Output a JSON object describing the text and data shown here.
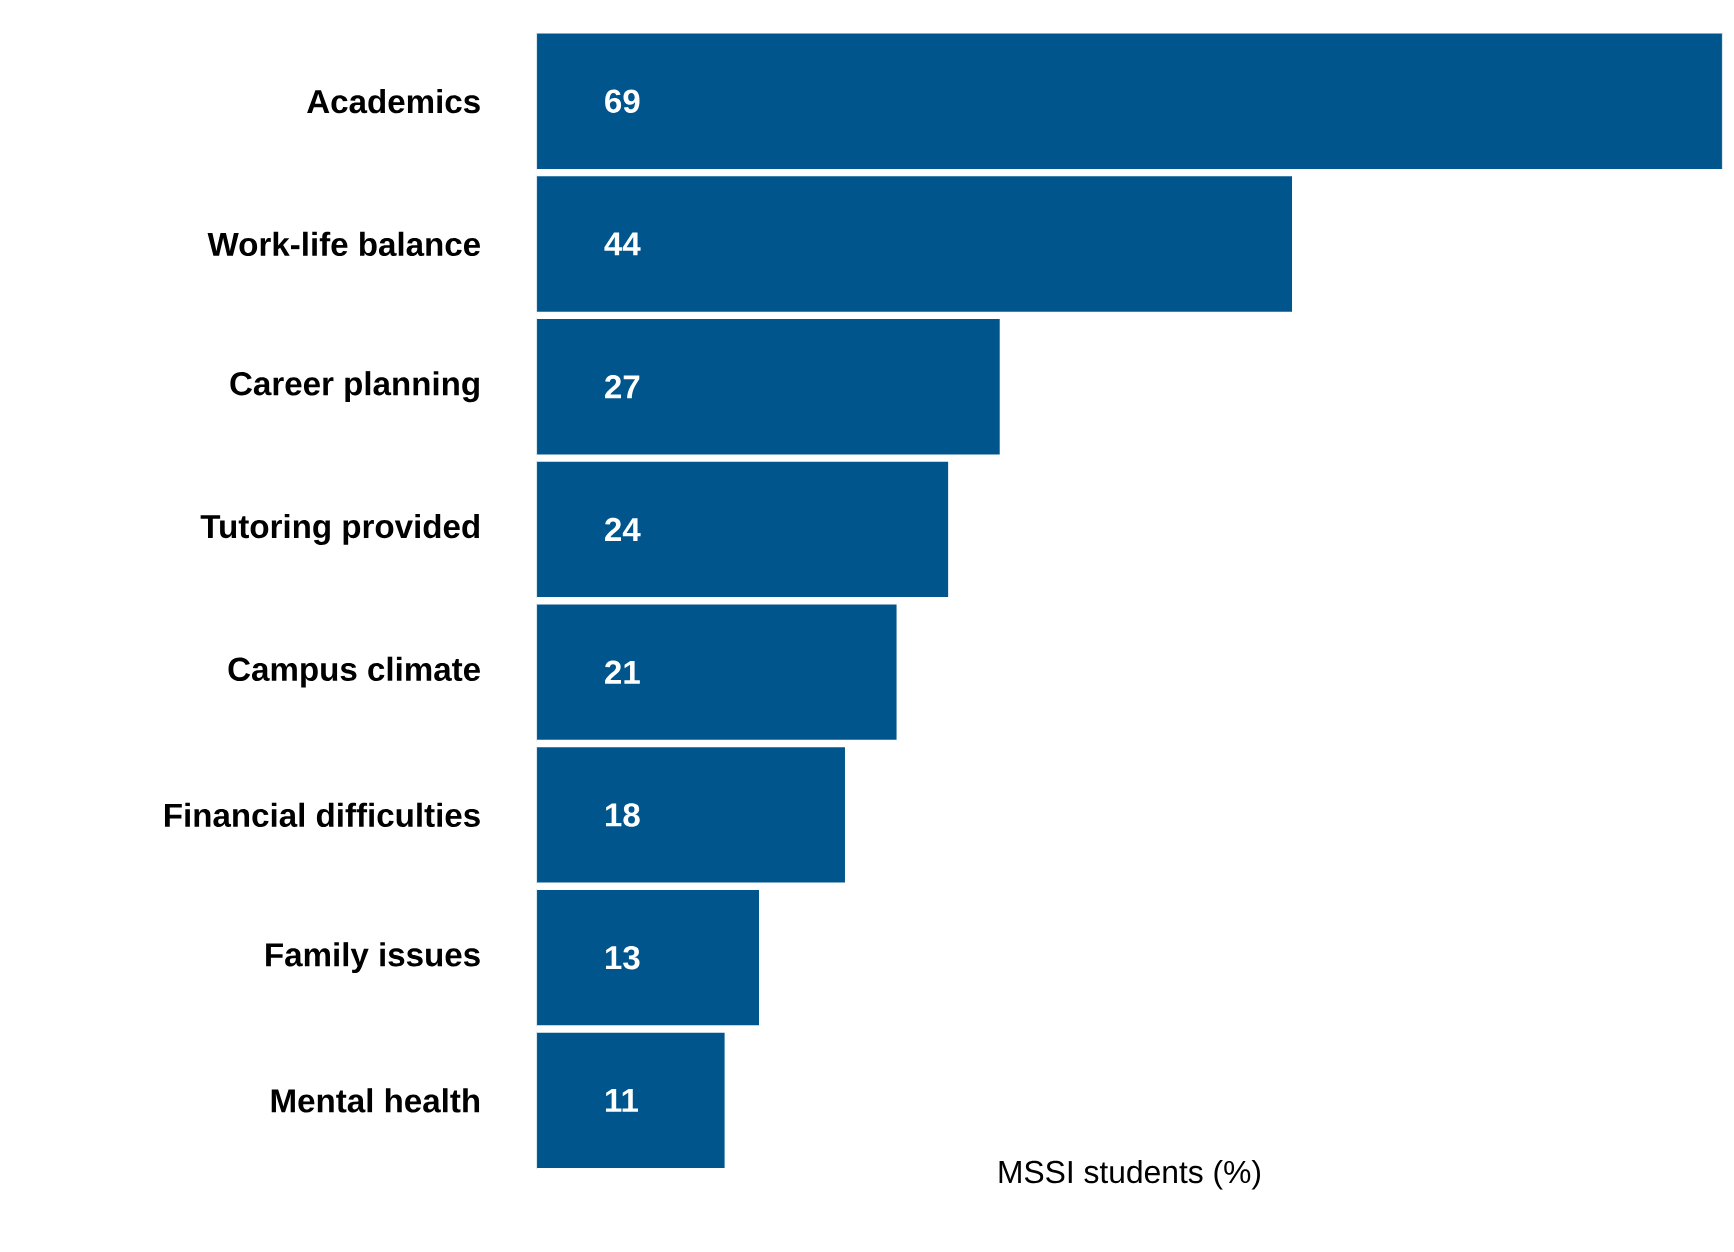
{
  "chart_data": {
    "type": "bar",
    "orientation": "horizontal",
    "categories": [
      "Academics",
      "Work-life balance",
      "Career planning",
      "Tutoring provided",
      "Campus climate",
      "Financial difficulties",
      "Family issues",
      "Mental health"
    ],
    "values": [
      69,
      44,
      27,
      24,
      21,
      18,
      13,
      11
    ],
    "color": "#00568c",
    "data_labels": true,
    "xlabel": "MSSI students (%)"
  }
}
